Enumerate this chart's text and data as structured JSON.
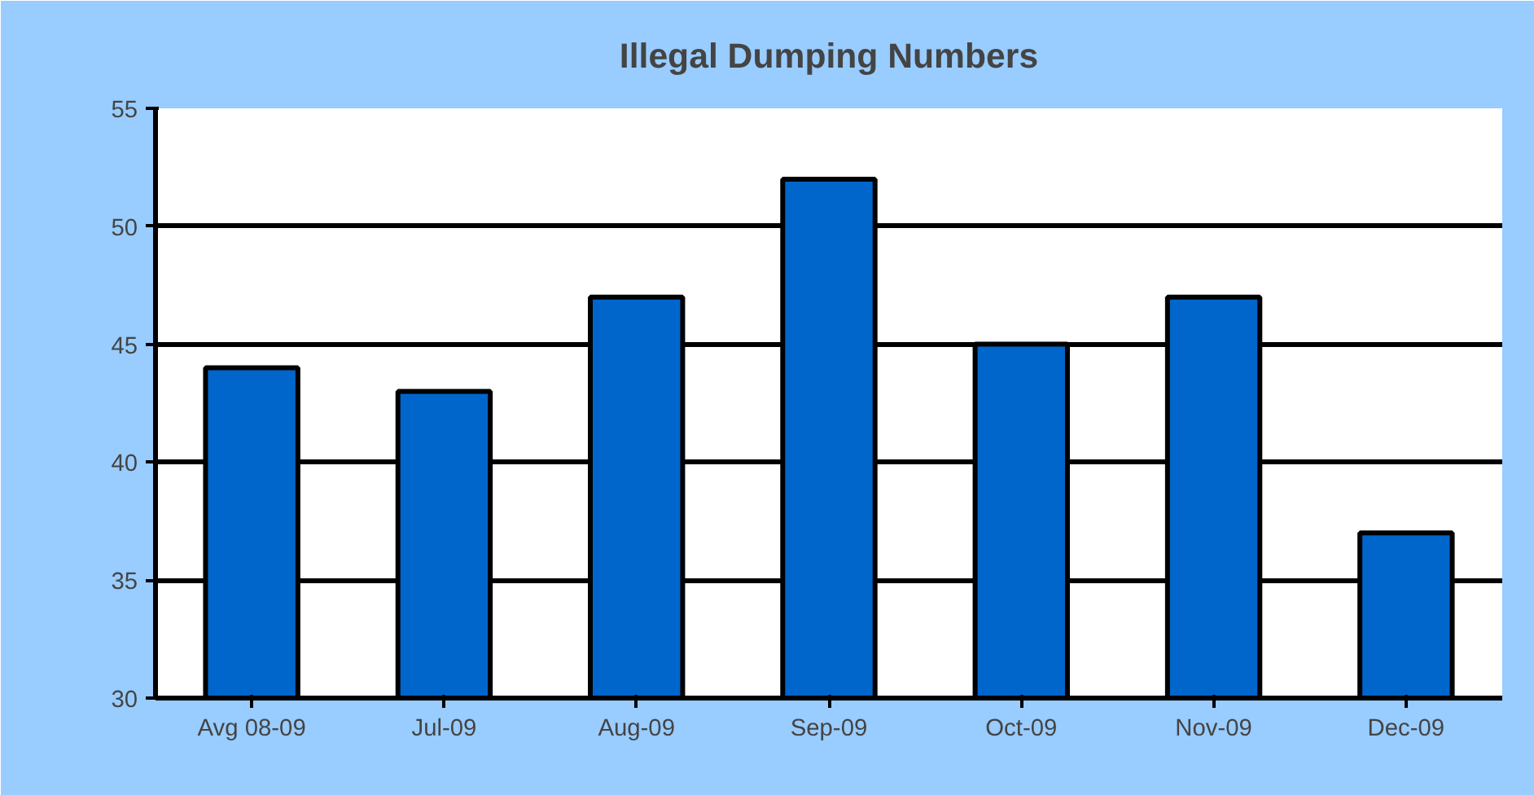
{
  "chart_data": {
    "type": "bar",
    "title": "Illegal Dumping Numbers",
    "categories": [
      "Avg 08-09",
      "Jul-09",
      "Aug-09",
      "Sep-09",
      "Oct-09",
      "Nov-09",
      "Dec-09"
    ],
    "values": [
      44,
      43,
      47,
      52,
      45,
      47,
      37
    ],
    "color": "#0066cc",
    "ylim": [
      30,
      55
    ],
    "yticks": [
      30,
      35,
      40,
      45,
      50,
      55
    ],
    "grid": "y"
  }
}
